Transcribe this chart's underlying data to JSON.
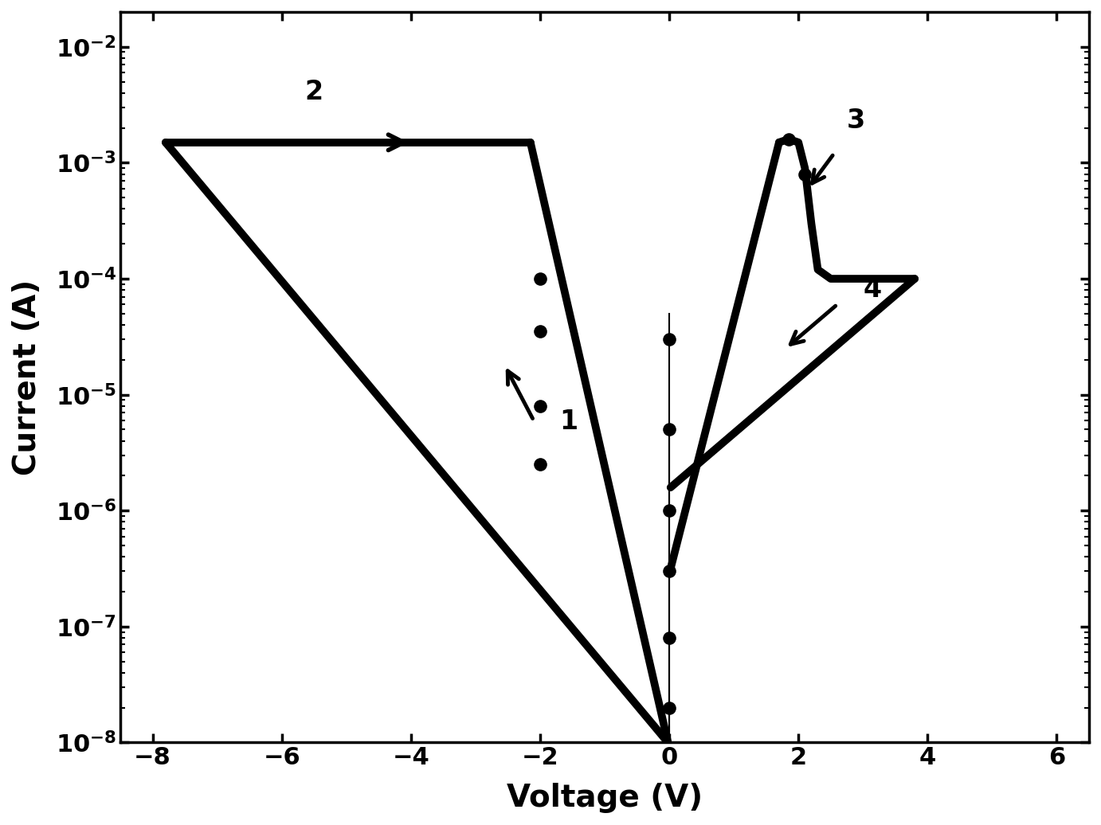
{
  "xlabel": "Voltage (V)",
  "ylabel": "Current (A)",
  "xlim": [
    -8.5,
    6.5
  ],
  "xticks": [
    -8,
    -6,
    -4,
    -2,
    0,
    2,
    4,
    6
  ],
  "background_color": "#ffffff",
  "line_color": "#000000",
  "line_width": 7.0,
  "dot_size": 120,
  "annotation_fontsize": 24,
  "xlabel_fontsize": 28,
  "ylabel_fontsize": 28,
  "tick_labelsize": 22
}
